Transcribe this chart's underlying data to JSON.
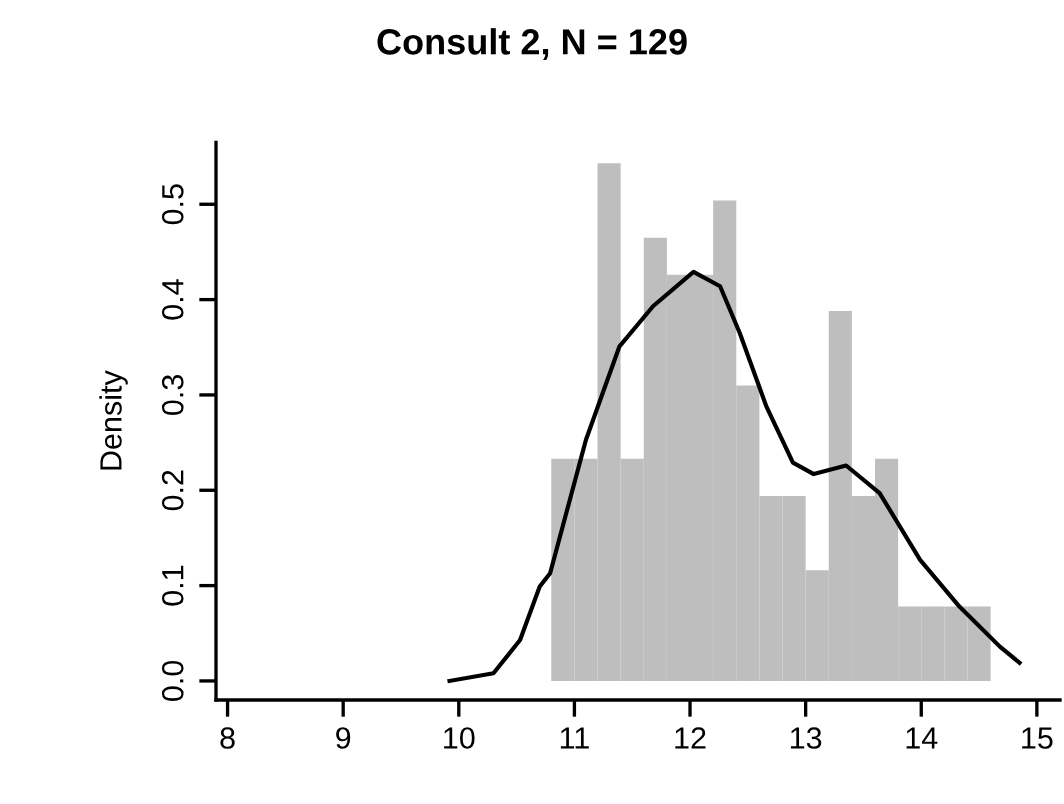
{
  "chart_data": {
    "type": "histogram",
    "title": "Consult 2, N = 129",
    "ylabel": "Density",
    "bins": [
      10.8,
      11.0,
      11.2,
      11.4,
      11.6,
      11.8,
      12.0,
      12.2,
      12.4,
      12.6,
      12.8,
      13.0,
      13.2,
      13.4,
      13.6,
      13.8,
      14.0,
      14.2,
      14.4,
      14.6
    ],
    "values": [
      0.233,
      0.233,
      0.543,
      0.233,
      0.465,
      0.426,
      0.426,
      0.504,
      0.31,
      0.194,
      0.194,
      0.116,
      0.388,
      0.194,
      0.233,
      0.078,
      0.078,
      0.078,
      0.078
    ],
    "color": "#bebebe",
    "series": [
      {
        "type": "line",
        "color": "#000000",
        "x": [
          9.92,
          10.3,
          10.53,
          10.7,
          10.79,
          11.1,
          11.39,
          11.68,
          12.03,
          12.26,
          12.43,
          12.66,
          12.89,
          13.07,
          13.35,
          13.64,
          13.99,
          14.33,
          14.68,
          14.85
        ],
        "values": [
          0.0,
          0.008,
          0.043,
          0.099,
          0.113,
          0.253,
          0.351,
          0.393,
          0.429,
          0.414,
          0.365,
          0.288,
          0.229,
          0.217,
          0.226,
          0.197,
          0.127,
          0.078,
          0.036,
          0.019
        ]
      }
    ],
    "xlim": [
      7.9,
      15.2
    ],
    "ylim": [
      -0.02,
      0.565
    ],
    "xticks": [
      8,
      9,
      10,
      11,
      12,
      13,
      14,
      15
    ],
    "yticks": [
      {
        "value": 0,
        "label": "0.0"
      },
      0.1,
      0.2,
      0.3,
      0.4,
      0.5
    ],
    "grid": false,
    "legend": false
  }
}
